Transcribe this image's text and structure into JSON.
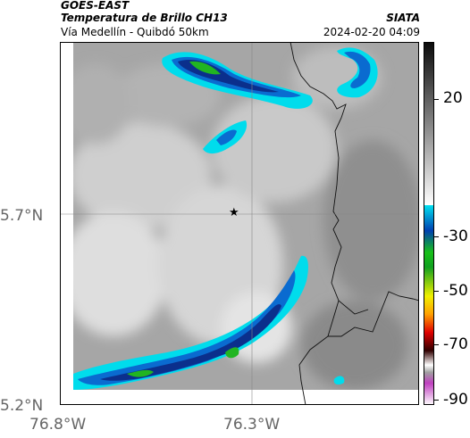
{
  "header": {
    "satellite": "GOES-EAST",
    "product": "Temperatura de Brillo CH13",
    "region": "Vía Medellín - Quibdó 50km",
    "org": "SIATA",
    "datetime": "2024-02-20 04:09"
  },
  "axes": {
    "lat_labels": [
      {
        "value": 5.7,
        "label": "5.7°N"
      },
      {
        "value": 5.2,
        "label": "5.2°N"
      }
    ],
    "lon_labels": [
      {
        "value": -76.8,
        "label": "76.8°W"
      },
      {
        "value": -76.3,
        "label": "76.3°W"
      }
    ]
  },
  "colorbar": {
    "ticks": [
      "20",
      "-30",
      "-50",
      "-70",
      "-90"
    ],
    "colors": {
      "warm_dark": "#111111",
      "cold_cyan": "#00e0f0",
      "cold_blue": "#0030a0",
      "green": "#18c018",
      "yellow": "#f0f000",
      "red": "#e00000",
      "magenta": "#c040c0"
    }
  },
  "marker": {
    "icon": "star-icon"
  }
}
